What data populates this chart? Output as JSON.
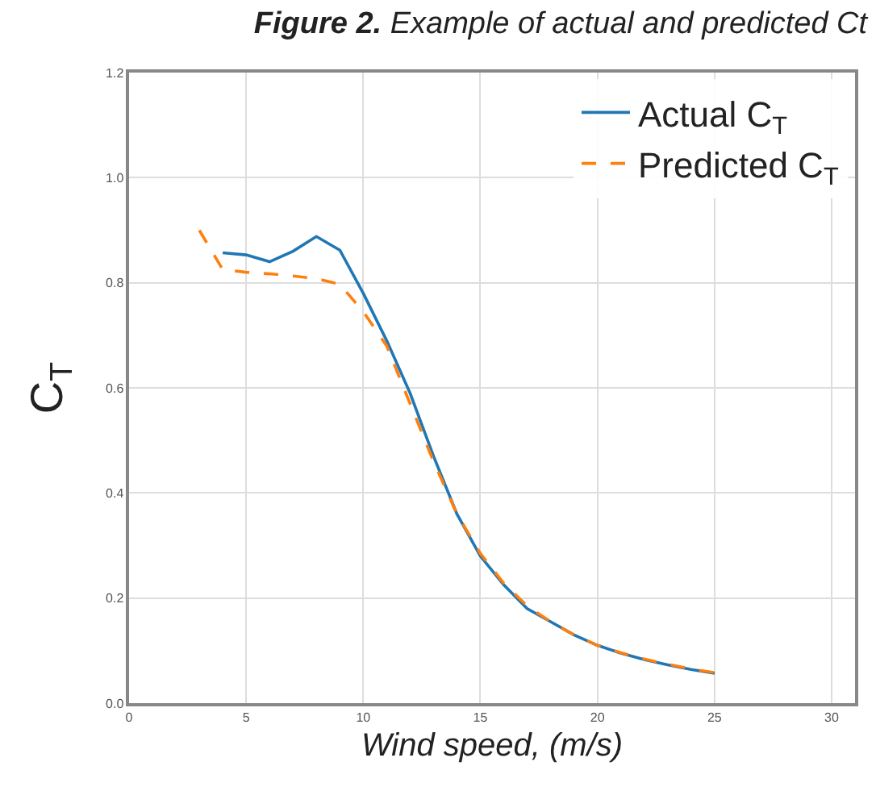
{
  "chart_data": {
    "type": "line",
    "title": "Figure 2. Example of actual and predicted Ct",
    "xlabel": "Wind speed, (m/s)",
    "ylabel": "C$_{T}$",
    "series": [
      {
        "name": "Actual C$_{T}$",
        "color": "#1f77b4",
        "line_style": "solid",
        "x": [
          4,
          5,
          6,
          7,
          8,
          9,
          10,
          11,
          12,
          13,
          14,
          15,
          16,
          17,
          18,
          19,
          20,
          21,
          22,
          23,
          24,
          25
        ],
        "values": [
          0.857,
          0.853,
          0.84,
          0.86,
          0.888,
          0.862,
          0.78,
          0.69,
          0.59,
          0.47,
          0.36,
          0.28,
          0.225,
          0.18,
          0.155,
          0.13,
          0.11,
          0.095,
          0.083,
          0.073,
          0.064,
          0.057
        ]
      },
      {
        "name": "Predicted C$_{T}$",
        "color": "#ff7f0e",
        "line_style": "dashed",
        "x": [
          3,
          4,
          5,
          6,
          7,
          8,
          9,
          10,
          11,
          12,
          13,
          14,
          15,
          16,
          17,
          18,
          19,
          20,
          21,
          22,
          23,
          24,
          25
        ],
        "values": [
          0.9,
          0.825,
          0.82,
          0.817,
          0.813,
          0.808,
          0.797,
          0.745,
          0.68,
          0.57,
          0.46,
          0.36,
          0.285,
          0.228,
          0.185,
          0.155,
          0.13,
          0.11,
          0.096,
          0.084,
          0.074,
          0.065,
          0.058
        ]
      }
    ],
    "xlim": [
      0,
      31
    ],
    "xticks": [
      0,
      5,
      10,
      15,
      20,
      25,
      30
    ],
    "ylim": [
      0,
      1.2
    ],
    "yticks": [
      {
        "value": 0,
        "label": "0.0"
      },
      {
        "value": 0.2,
        "label": "0.2"
      },
      {
        "value": 0.4,
        "label": "0.4"
      },
      {
        "value": 0.6,
        "label": "0.6"
      },
      {
        "value": 0.8,
        "label": "0.8"
      },
      {
        "value": 1.0,
        "label": "1.0"
      },
      {
        "value": 1.2,
        "label": "1.2"
      }
    ],
    "grid": true,
    "legend": "top right",
    "marker": "none"
  }
}
